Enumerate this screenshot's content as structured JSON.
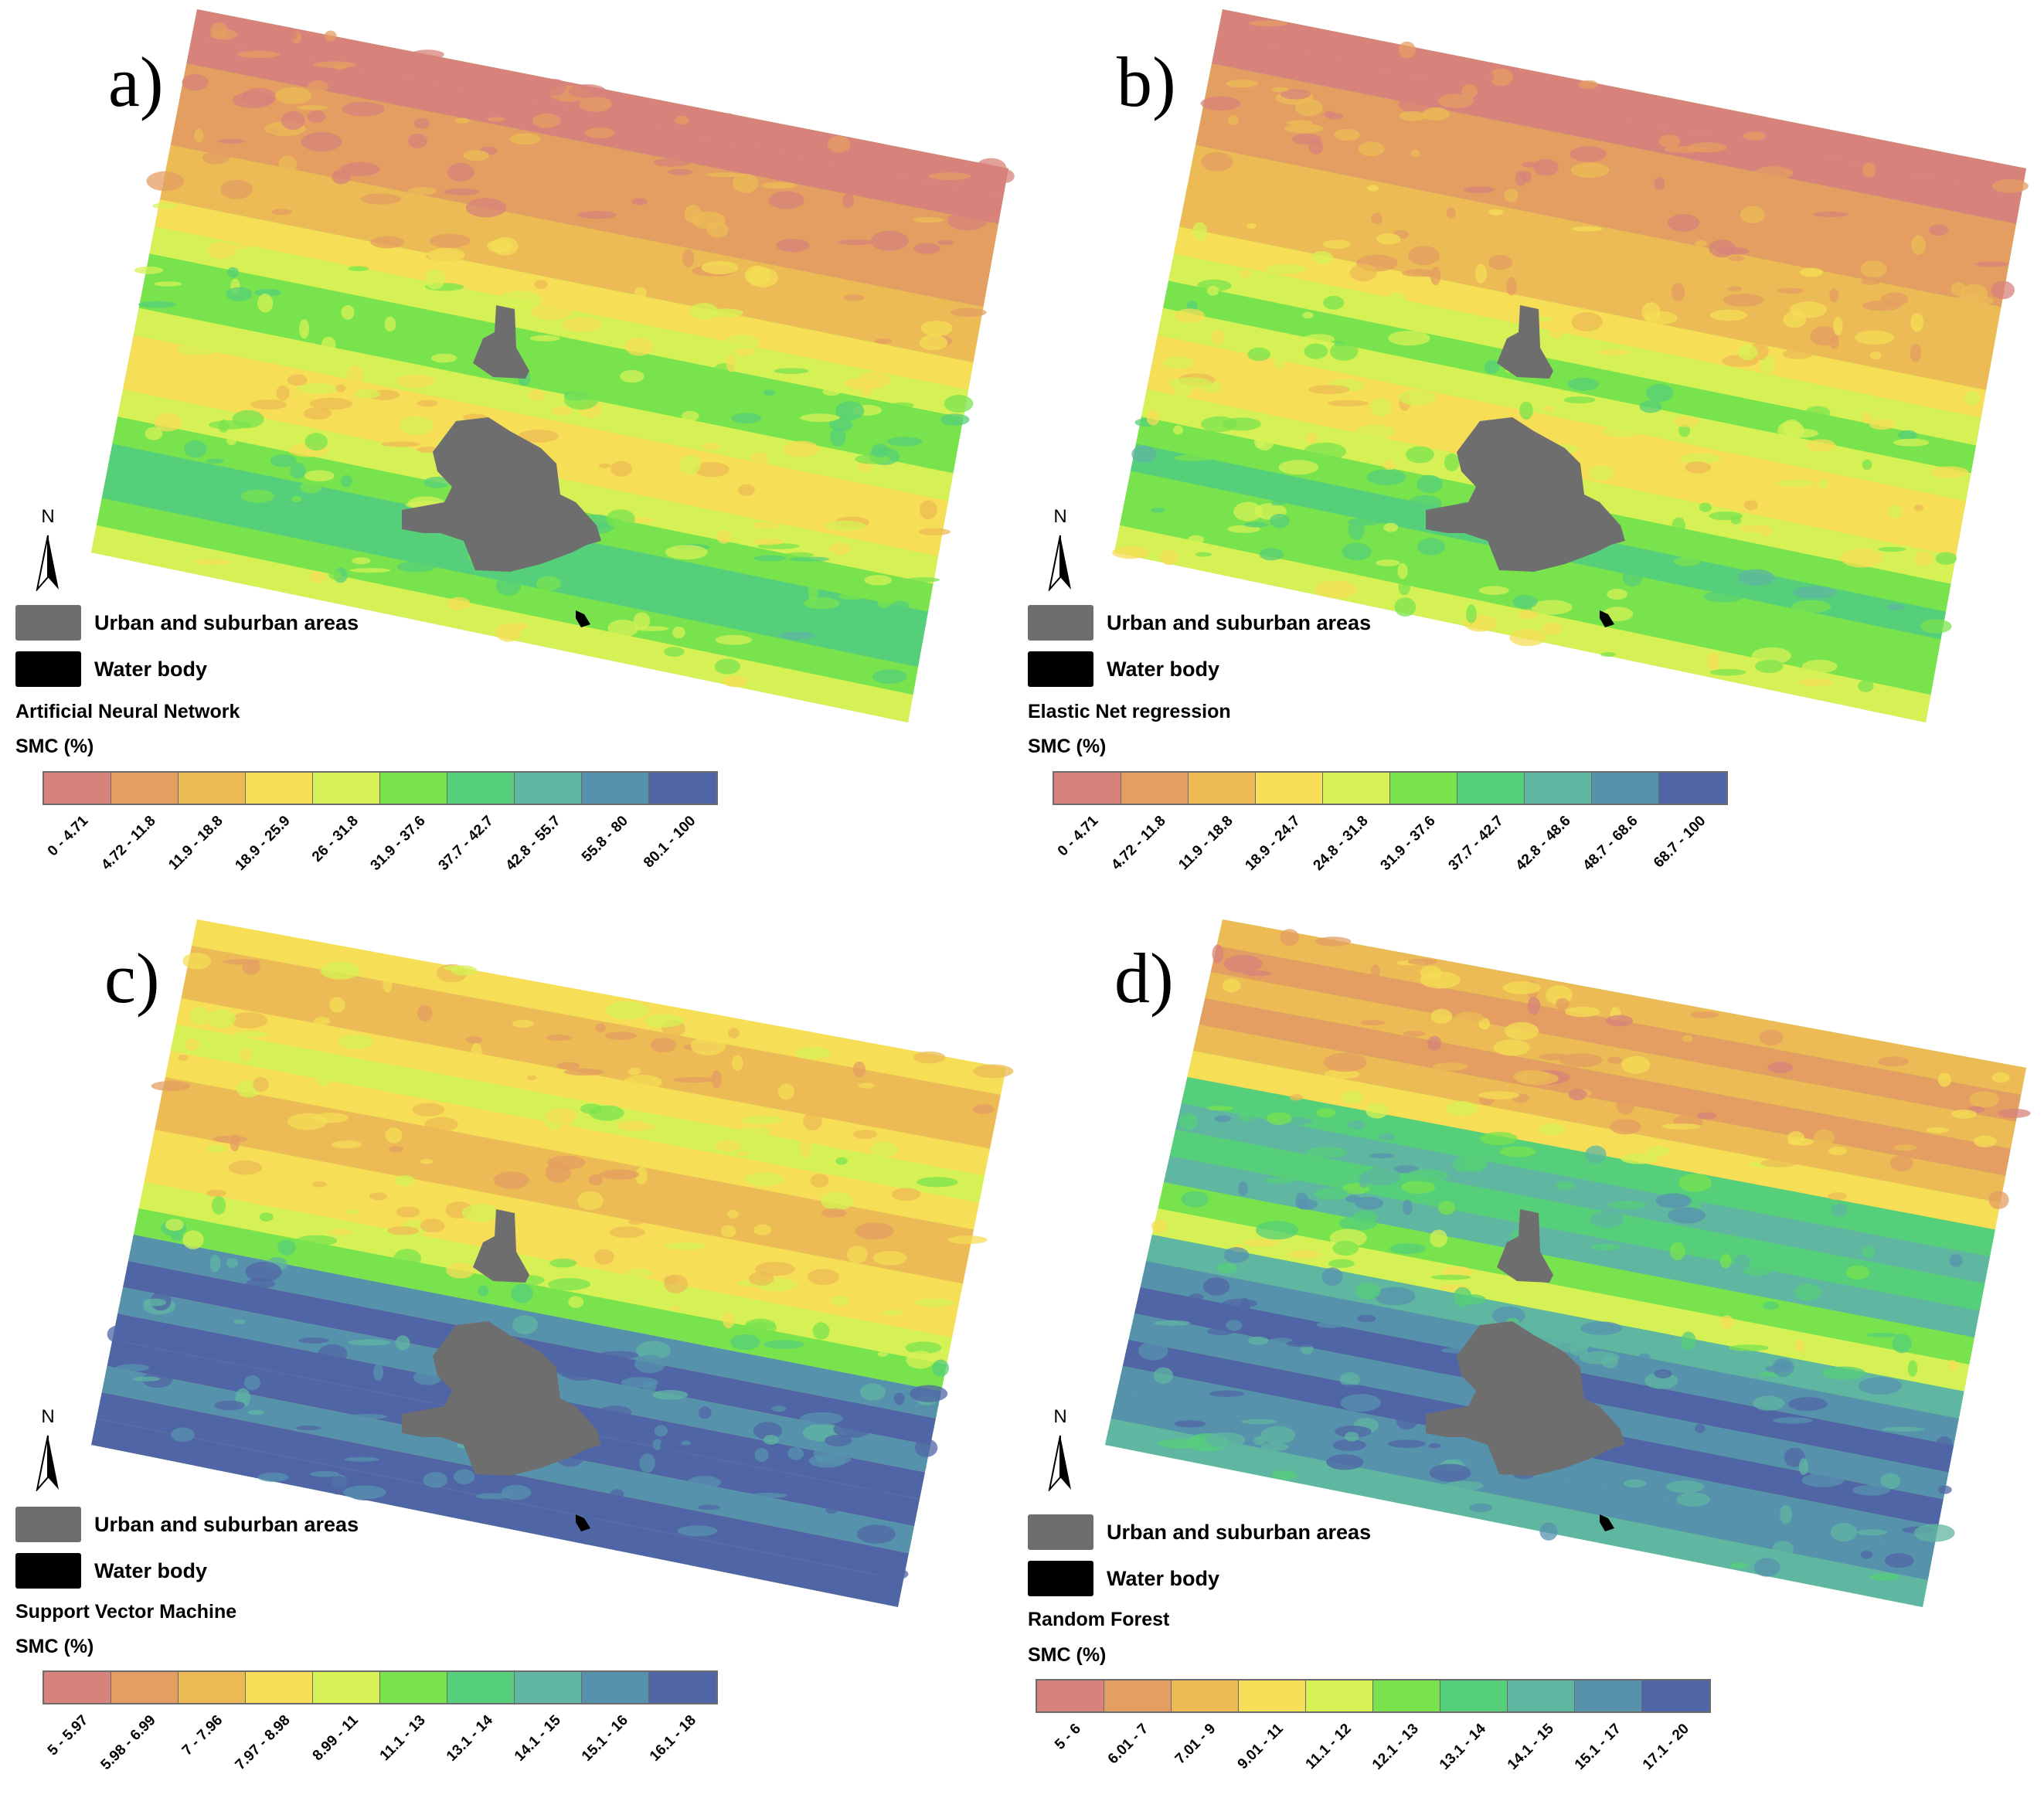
{
  "colors": {
    "urban": "#6e6e6e",
    "water": "#000000",
    "ramp": [
      "#d7837b",
      "#e49e62",
      "#ecbb55",
      "#f6de56",
      "#d5f155",
      "#79e34d",
      "#56cf7a",
      "#5fb6a1",
      "#5792ad",
      "#4f65a6"
    ]
  },
  "legend_common": {
    "urban_label": "Urban and suburban areas",
    "water_label": "Water body",
    "smc_label": "SMC (%)",
    "north_label": "N"
  },
  "panels": [
    {
      "label": "a)",
      "method": "Artificial Neural Network",
      "pattern": "ann",
      "classes": [
        "0 - 4.71",
        "4.72 - 11.8",
        "11.9 - 18.8",
        "18.9 - 25.9",
        "26 - 31.8",
        "31.9 - 37.6",
        "37.7 - 42.7",
        "42.8 - 55.7",
        "55.8 - 80",
        "80.1 - 100"
      ]
    },
    {
      "label": "b)",
      "method": "Elastic Net regression",
      "pattern": "enr",
      "classes": [
        "0 - 4.71",
        "4.72 - 11.8",
        "11.9 - 18.8",
        "18.9 - 24.7",
        "24.8 - 31.8",
        "31.9 - 37.6",
        "37.7 - 42.7",
        "42.8 - 48.6",
        "48.7 - 68.6",
        "68.7 - 100"
      ]
    },
    {
      "label": "c)",
      "method": "Support Vector Machine",
      "pattern": "svm",
      "classes": [
        "5 - 5.97",
        "5.98 - 6.99",
        "7 - 7.96",
        "7.97 - 8.98",
        "8.99 - 11",
        "11.1 - 13",
        "13.1 - 14",
        "14.1 - 15",
        "15.1 - 16",
        "16.1 - 18"
      ]
    },
    {
      "label": "d)",
      "method": "Random Forest",
      "pattern": "rf",
      "classes": [
        "5 - 6",
        "6.01 - 7",
        "7.01 - 9",
        "9.01 - 11",
        "11.1 - 12",
        "12.1 - 13",
        "13.1 - 14",
        "14.1 - 15",
        "15.1 - 17",
        "17.1 - 20"
      ]
    }
  ]
}
